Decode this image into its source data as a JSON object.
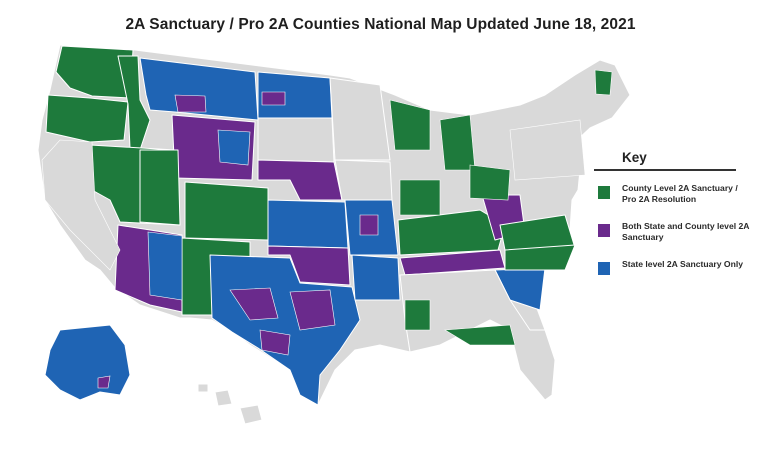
{
  "title": "2A Sanctuary / Pro 2A Counties National Map Updated June 18, 2021",
  "colors": {
    "county": "#1e7a3c",
    "both": "#6a2a8c",
    "state": "#1f64b4",
    "none": "#d9d9d9",
    "border": "#ffffff"
  },
  "legend": {
    "title": "Key",
    "items": [
      {
        "label": "County Level 2A Sanctuary / Pro 2A Resolution",
        "color": "#1e7a3c"
      },
      {
        "label": "Both State and County level 2A Sanctuary",
        "color": "#6a2a8c"
      },
      {
        "label": "State level 2A Sanctuary Only",
        "color": "#1f64b4"
      }
    ]
  }
}
